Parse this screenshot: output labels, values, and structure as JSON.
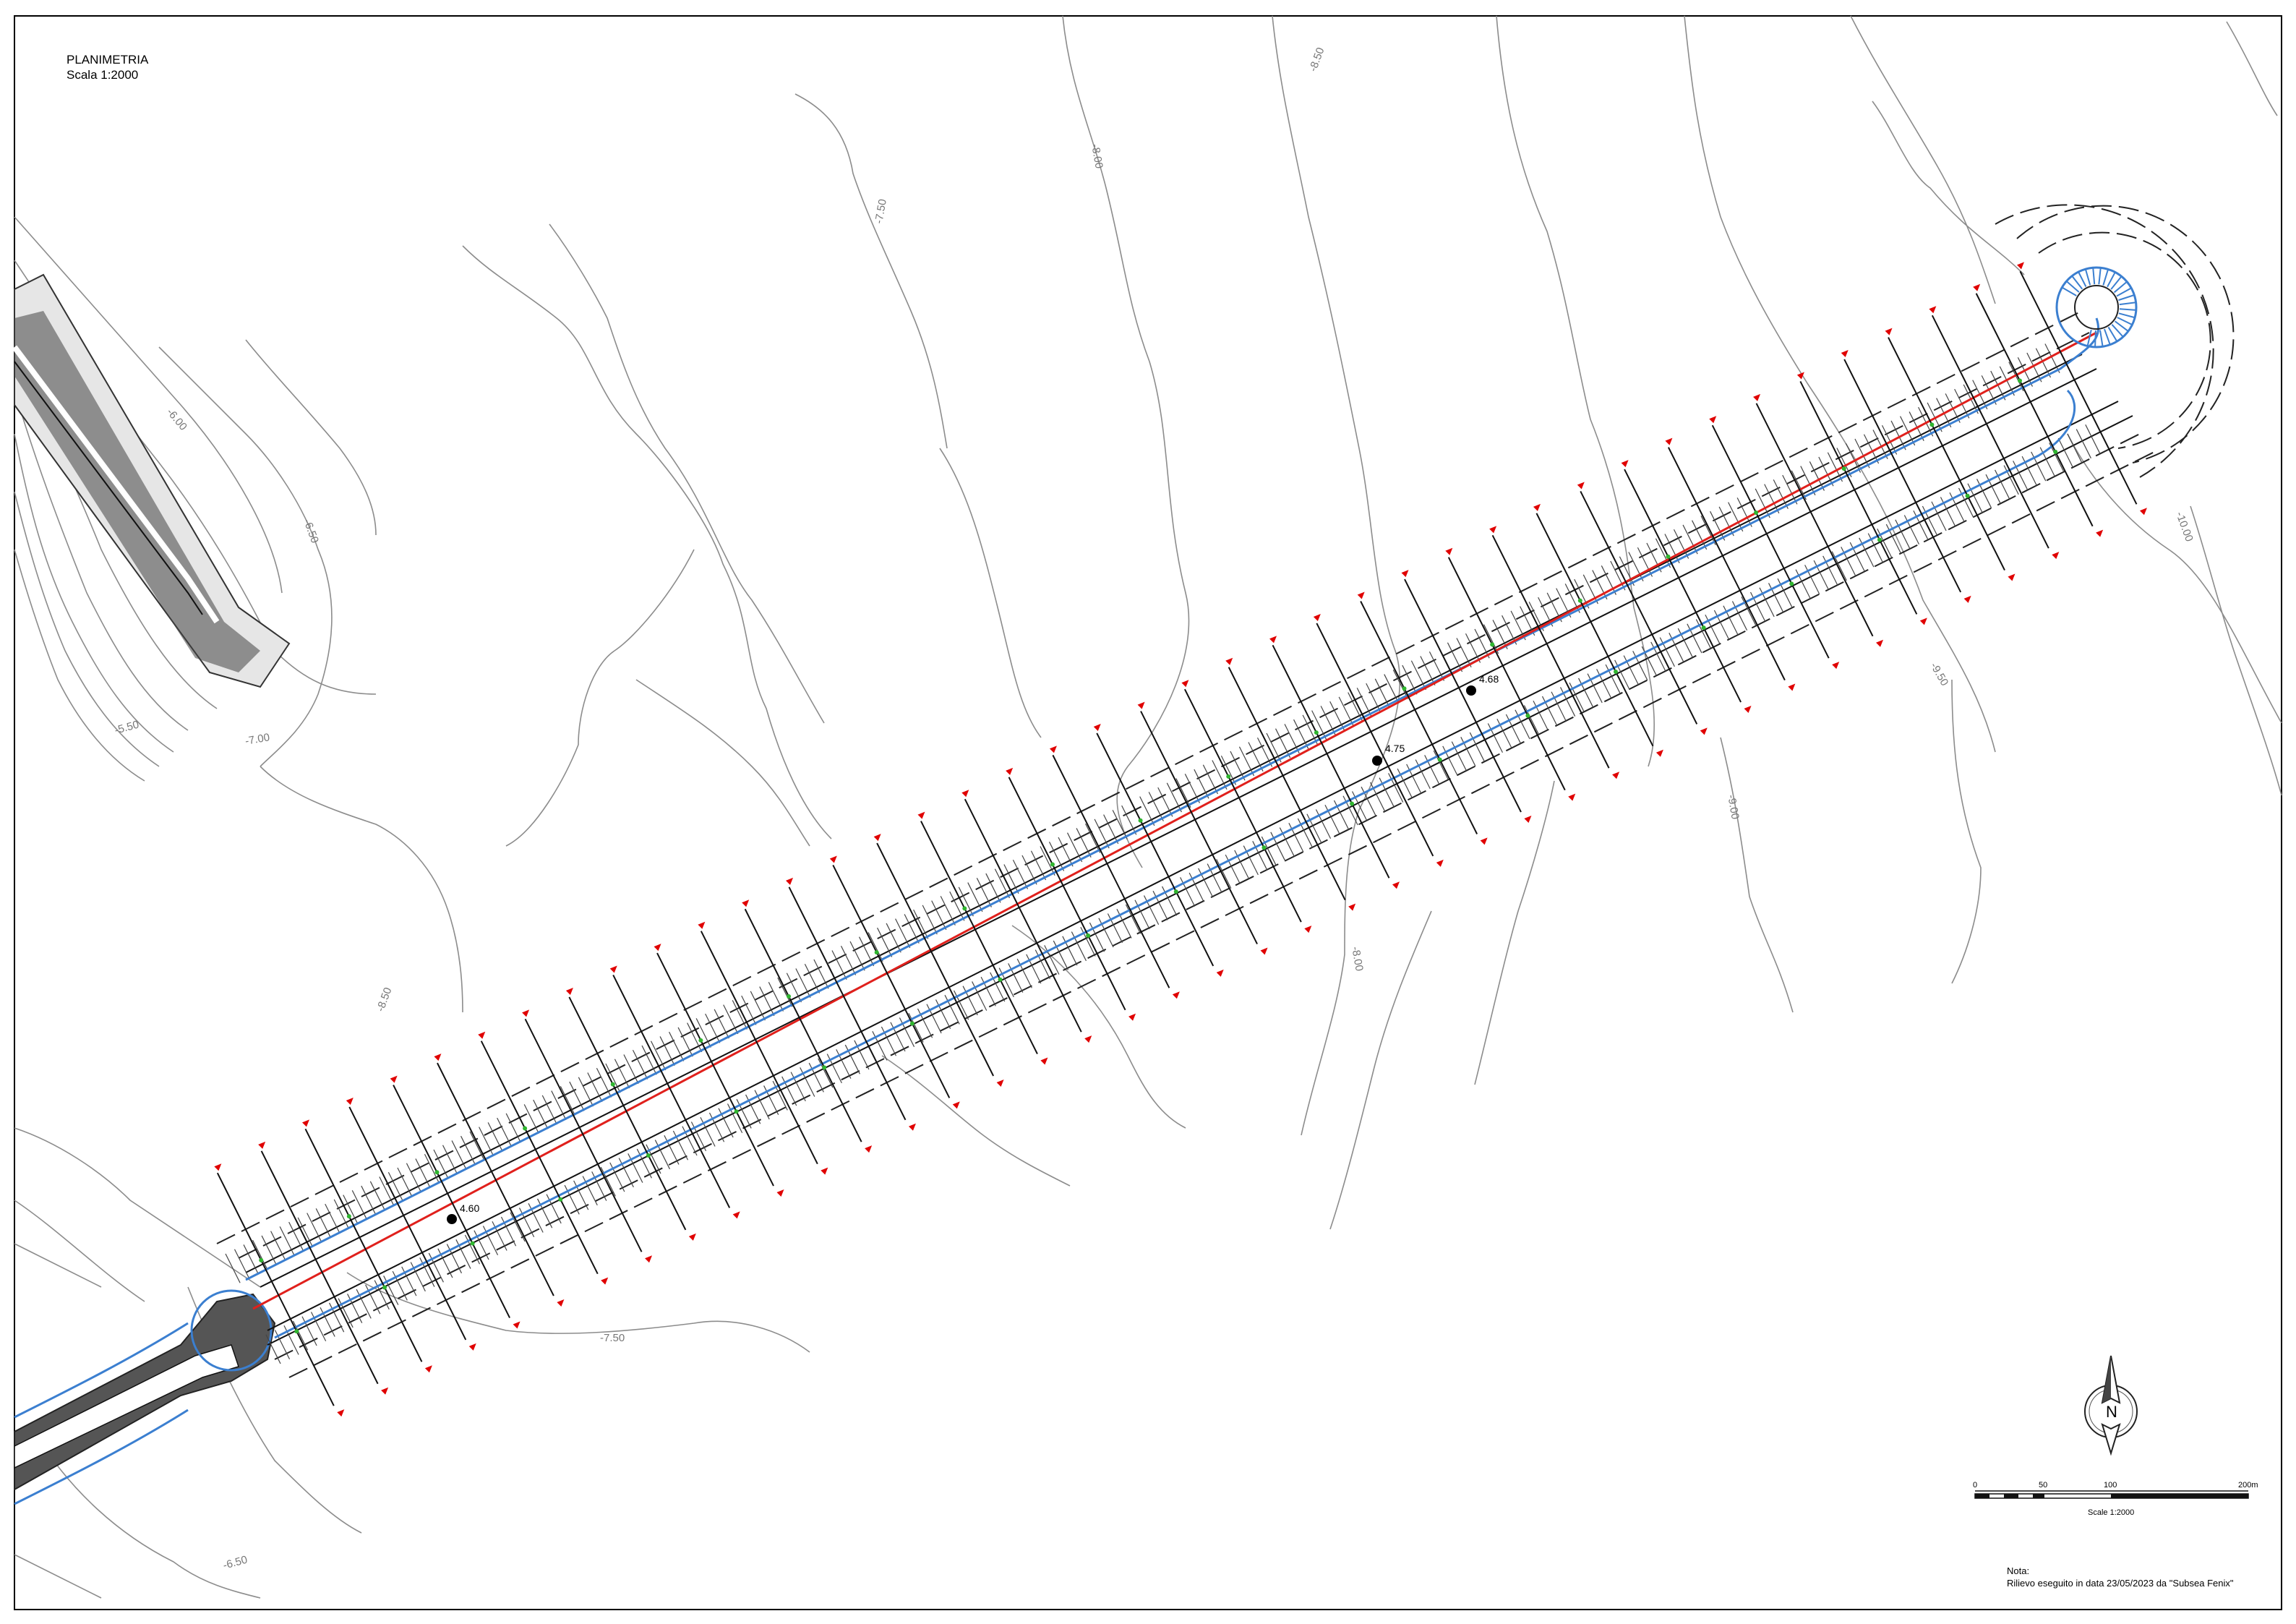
{
  "title": {
    "line1": "PLANIMETRIA",
    "line2": "Scala 1:2000"
  },
  "note": {
    "label": "Nota:",
    "text": "Rilievo eseguito in data 23/05/2023 da \"Subsea Fenix\""
  },
  "north_arrow": {
    "letter": "N",
    "icon": "north-arrow-icon"
  },
  "scale_bar": {
    "ticks": [
      "0",
      "50",
      "100",
      "200m"
    ],
    "caption": "Scale 1:2000"
  },
  "contour_labels": [
    "-7.50",
    "-8.00",
    "-8.50",
    "-9.00",
    "-9.50",
    "-10.00",
    "-6.50",
    "-7.00",
    "-5.50",
    "-6.00"
  ],
  "elevation_markers": [
    "4.75",
    "4.68",
    "4.60"
  ],
  "colors": {
    "axis_line": "#e0201c",
    "guide_line": "#3b7fd0",
    "section_marker": "#e00000",
    "contour": "#8c8c8c",
    "breakwater": "#222222",
    "green_point": "#2fb52f"
  }
}
